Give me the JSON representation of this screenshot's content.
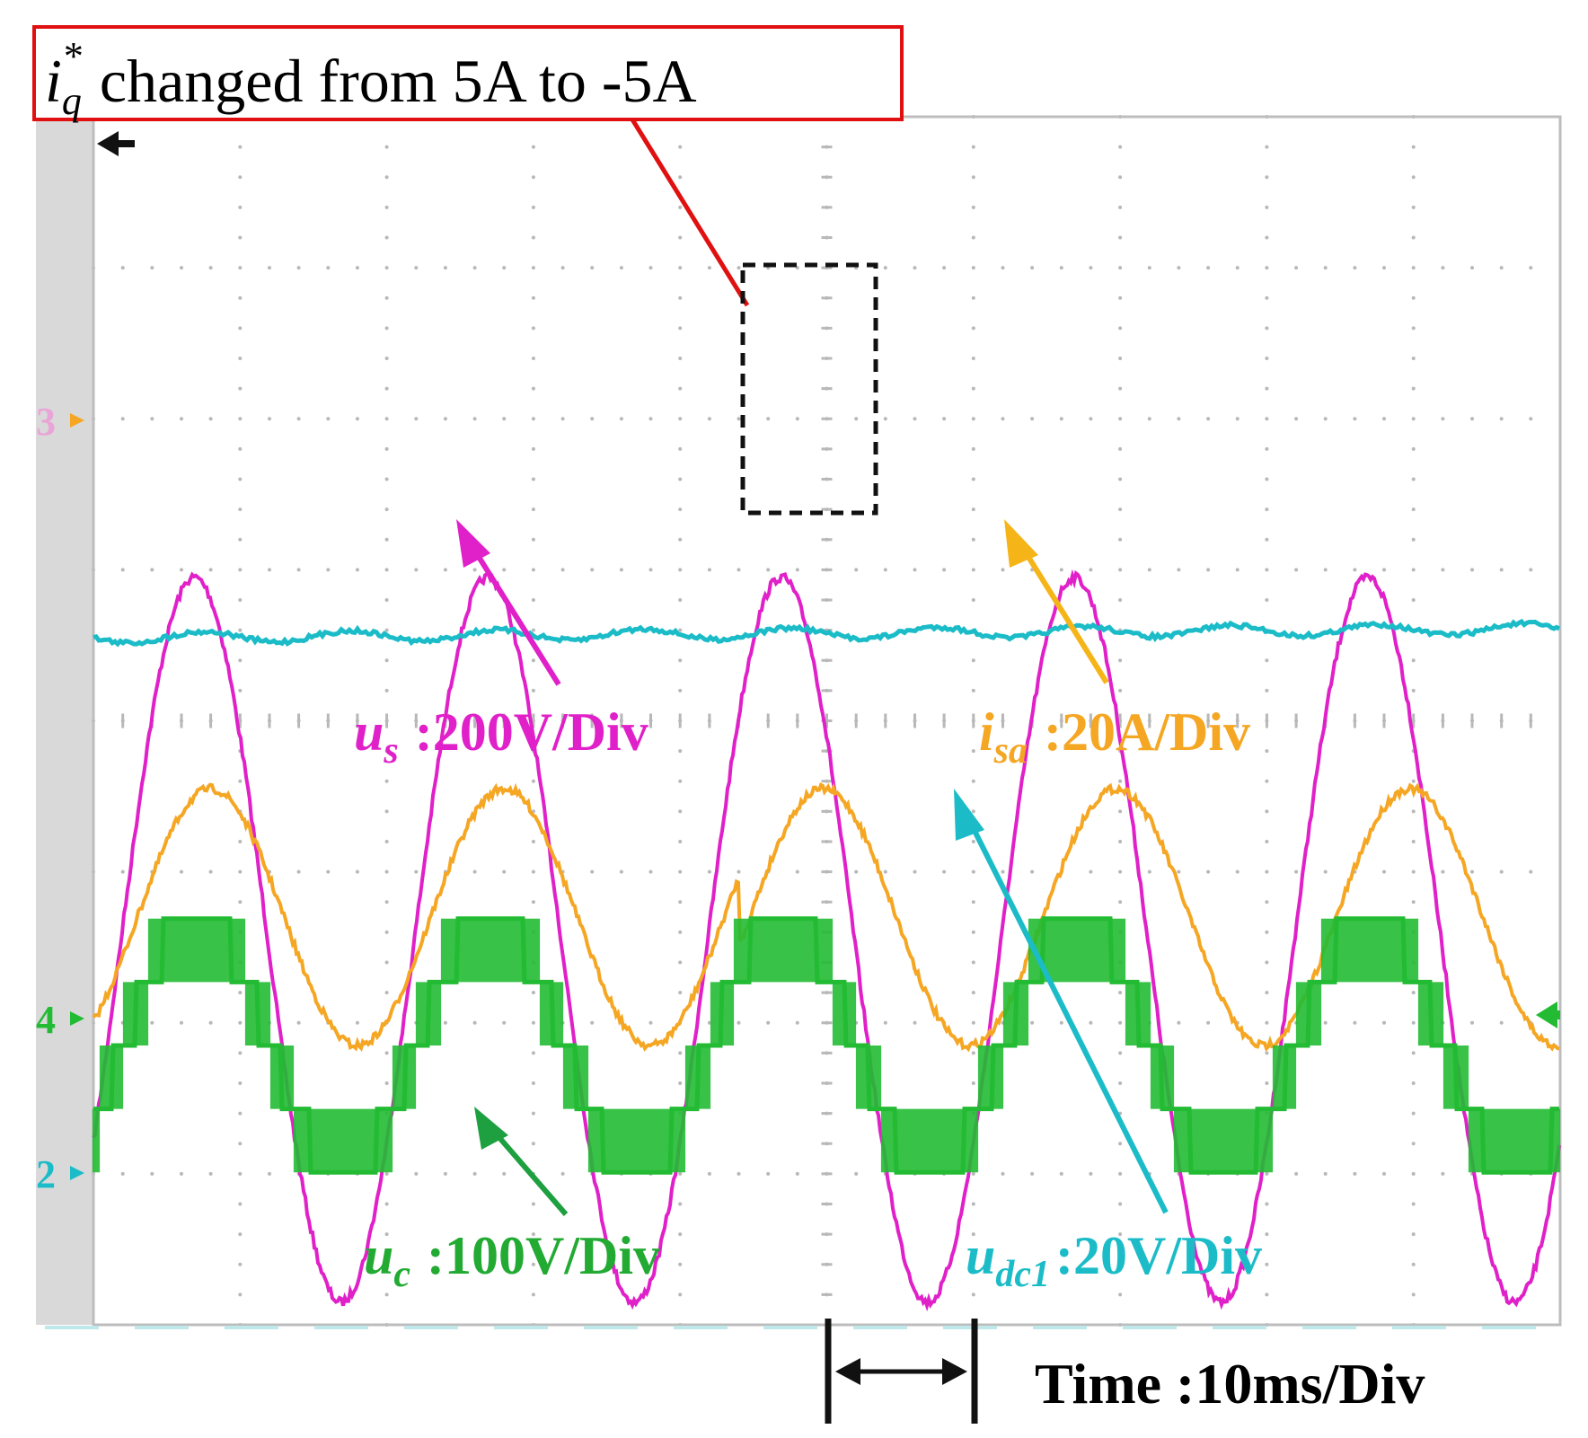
{
  "chart_data": {
    "type": "line",
    "title": "changed from 5A to -5A",
    "annotation_symbol": {
      "base": "i",
      "sub": "q",
      "sup": "*"
    },
    "time_scale": {
      "label": "Time :10ms/Div",
      "value": 10,
      "unit": "ms/Div"
    },
    "divisions": {
      "x": 10,
      "y": 8
    },
    "channel_markers": [
      "3",
      "4",
      "2"
    ],
    "series": [
      {
        "name": "u_s",
        "symbol_base": "u",
        "symbol_sub": "s",
        "scale_text": ":200V/Div",
        "color": "#e020c8",
        "shape": "sine",
        "frequency_hz": 50,
        "amplitude_div": 2.4,
        "offset_div": -1.45
      },
      {
        "name": "i_sa",
        "symbol_base": "i",
        "symbol_sub": "sa",
        "scale_text": ":20A/Div",
        "color": "#f5a623",
        "shape": "sine",
        "frequency_hz": 50,
        "amplitude_div": 0.85,
        "offset_div": -1.3,
        "phase_step_ms": 44,
        "note": "iq* changed from 5A to -5A"
      },
      {
        "name": "u_dc1",
        "symbol_base": "u",
        "symbol_sub": "dc1",
        "scale_text": ":20V/Div",
        "color": "#1bbcc8",
        "shape": "dc",
        "level_div": 0.55
      },
      {
        "name": "u_c",
        "symbol_base": "u",
        "symbol_sub": "c",
        "scale_text": ":100V/Div",
        "color": "#22bb33",
        "shape": "multilevel",
        "frequency_hz": 50,
        "levels": 5
      }
    ]
  }
}
